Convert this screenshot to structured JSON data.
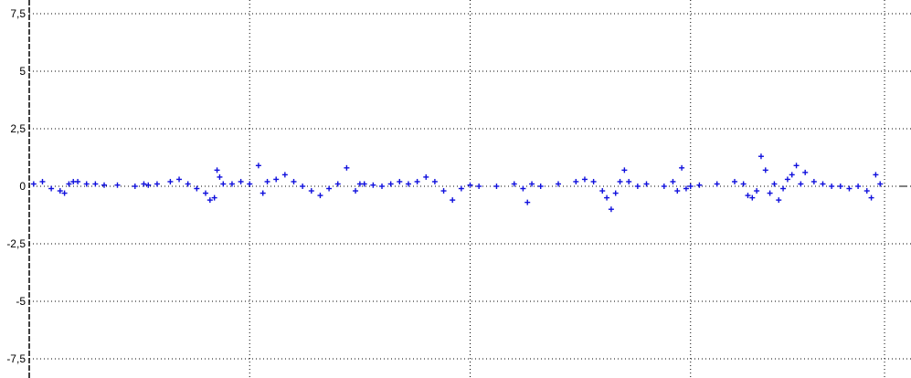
{
  "chart_data": {
    "type": "scatter",
    "title": "",
    "xlabel": "",
    "ylabel": "",
    "ylim": [
      -8,
      8
    ],
    "xlim": [
      0,
      1
    ],
    "grid": true,
    "y_ticks": [
      7.5,
      5,
      2.5,
      0,
      -2.5,
      -5,
      -7.5
    ],
    "y_tick_labels": [
      "7,5",
      "5",
      "2,5",
      "0",
      "-2,5",
      "-5",
      "-7,5"
    ],
    "x_gridlines": [
      0.25,
      0.5,
      0.75,
      0.97
    ],
    "marker": "+",
    "series": [
      {
        "color": "#1010dd",
        "x": [
          0.005,
          0.015,
          0.025,
          0.035,
          0.04,
          0.045,
          0.05,
          0.055,
          0.065,
          0.075,
          0.085,
          0.1,
          0.12,
          0.13,
          0.135,
          0.145,
          0.16,
          0.17,
          0.18,
          0.19,
          0.2,
          0.205,
          0.21,
          0.213,
          0.216,
          0.22,
          0.23,
          0.24,
          0.25,
          0.26,
          0.265,
          0.27,
          0.28,
          0.29,
          0.3,
          0.31,
          0.32,
          0.33,
          0.34,
          0.35,
          0.36,
          0.37,
          0.375,
          0.38,
          0.39,
          0.4,
          0.41,
          0.42,
          0.43,
          0.44,
          0.45,
          0.46,
          0.47,
          0.48,
          0.49,
          0.5,
          0.51,
          0.53,
          0.55,
          0.56,
          0.565,
          0.57,
          0.58,
          0.6,
          0.62,
          0.63,
          0.64,
          0.65,
          0.655,
          0.66,
          0.665,
          0.67,
          0.675,
          0.68,
          0.69,
          0.7,
          0.72,
          0.73,
          0.735,
          0.74,
          0.745,
          0.75,
          0.76,
          0.78,
          0.8,
          0.81,
          0.815,
          0.82,
          0.825,
          0.83,
          0.835,
          0.84,
          0.845,
          0.85,
          0.855,
          0.86,
          0.865,
          0.87,
          0.875,
          0.88,
          0.89,
          0.9,
          0.91,
          0.92,
          0.93,
          0.94,
          0.95,
          0.955,
          0.96,
          0.965
        ],
        "y": [
          0.1,
          0.2,
          -0.1,
          -0.2,
          -0.3,
          0.1,
          0.2,
          0.2,
          0.1,
          0.1,
          0.05,
          0.05,
          0.0,
          0.1,
          0.05,
          0.1,
          0.2,
          0.3,
          0.1,
          -0.1,
          -0.3,
          -0.6,
          -0.5,
          0.7,
          0.4,
          0.1,
          0.1,
          0.2,
          0.1,
          0.9,
          -0.3,
          0.2,
          0.3,
          0.5,
          0.2,
          0.0,
          -0.2,
          -0.4,
          -0.1,
          0.1,
          0.8,
          -0.2,
          0.1,
          0.1,
          0.05,
          0.0,
          0.1,
          0.2,
          0.1,
          0.2,
          0.4,
          0.2,
          -0.2,
          -0.6,
          -0.1,
          0.05,
          0.0,
          0.0,
          0.1,
          -0.1,
          -0.7,
          0.1,
          0.0,
          0.1,
          0.2,
          0.3,
          0.2,
          -0.2,
          -0.5,
          -1.0,
          -0.3,
          0.2,
          0.7,
          0.2,
          0.0,
          0.1,
          0.0,
          0.2,
          -0.2,
          0.8,
          -0.1,
          0.0,
          0.05,
          0.1,
          0.2,
          0.1,
          -0.4,
          -0.5,
          -0.2,
          1.3,
          0.7,
          -0.3,
          0.1,
          -0.6,
          -0.1,
          0.3,
          0.5,
          0.9,
          0.1,
          0.6,
          0.2,
          0.1,
          0.0,
          0.0,
          -0.1,
          0.0,
          -0.2,
          -0.5,
          0.5,
          0.1
        ]
      }
    ]
  }
}
